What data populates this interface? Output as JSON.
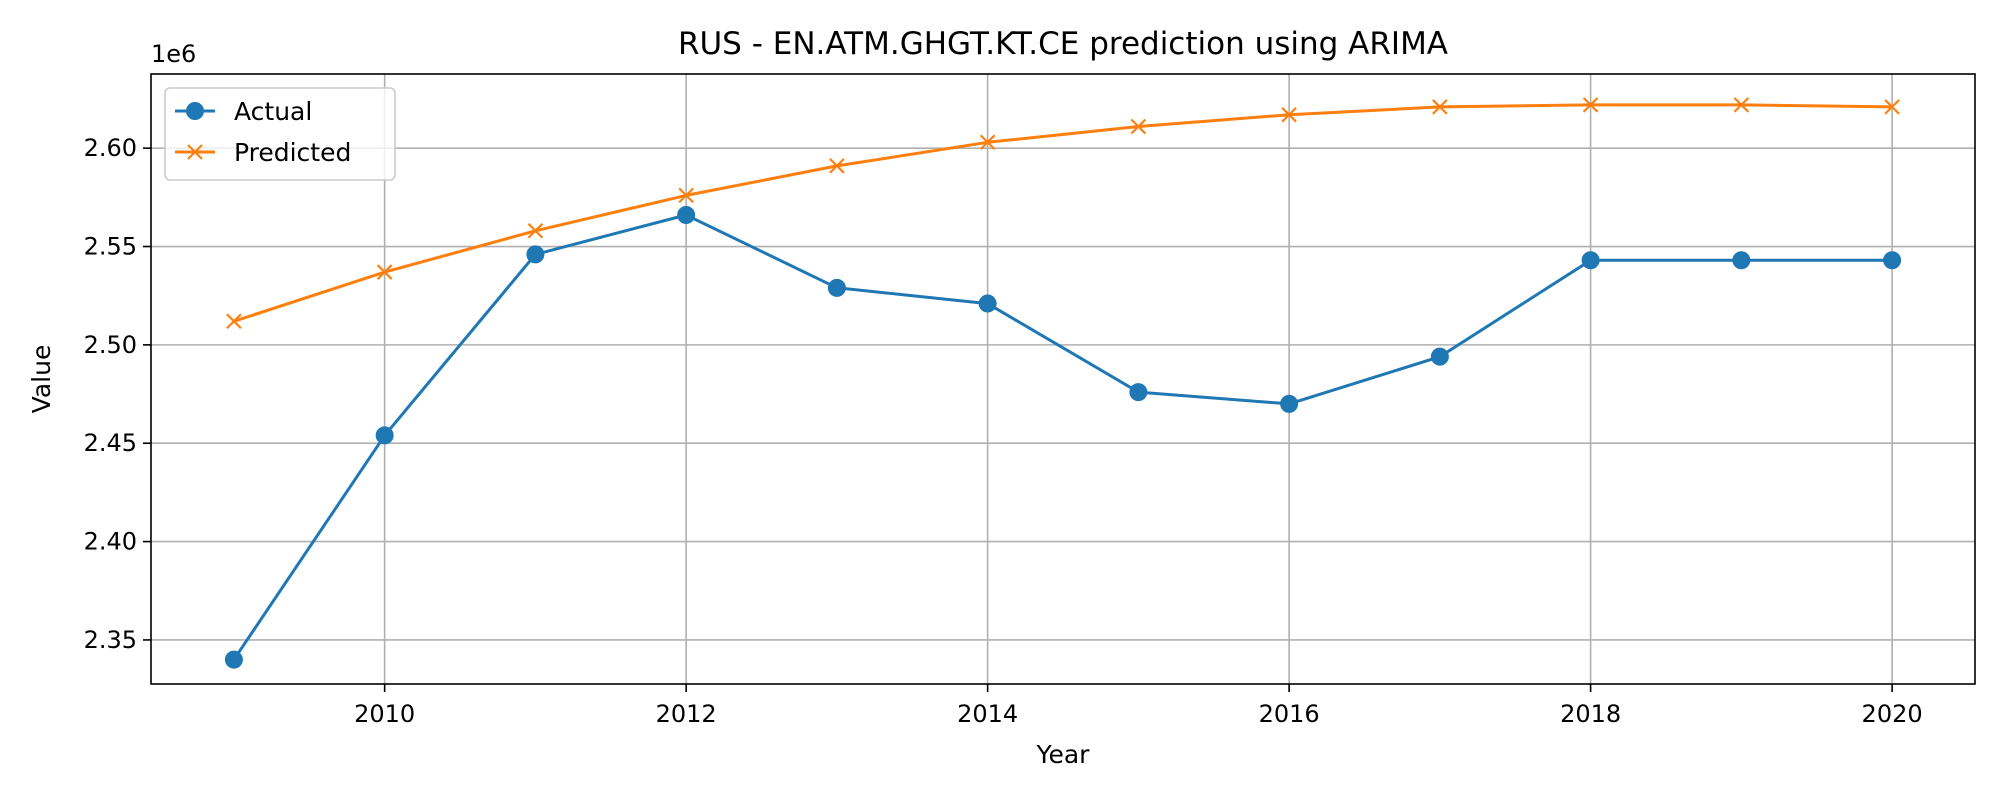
{
  "chart_data": {
    "type": "line",
    "title": "RUS - EN.ATM.GHGT.KT.CE prediction using ARIMA",
    "xlabel": "Year",
    "ylabel": "Value",
    "y_offset_label": "1e6",
    "x": [
      2009,
      2010,
      2011,
      2012,
      2013,
      2014,
      2015,
      2016,
      2017,
      2018,
      2019,
      2020
    ],
    "xlim": [
      2008.45,
      2020.55
    ],
    "ylim": [
      2.3276,
      2.6377
    ],
    "x_ticks": [
      2010,
      2012,
      2014,
      2016,
      2018,
      2020
    ],
    "y_ticks": [
      2.35,
      2.4,
      2.45,
      2.5,
      2.55,
      2.6
    ],
    "y_tick_labels": [
      "2.35",
      "2.40",
      "2.45",
      "2.50",
      "2.55",
      "2.60"
    ],
    "grid": true,
    "legend_position": "top-left",
    "series": [
      {
        "name": "Actual",
        "color": "#1f77b4",
        "marker": "circle",
        "values": [
          2.34,
          2.454,
          2.546,
          2.566,
          2.529,
          2.521,
          2.476,
          2.47,
          2.494,
          2.543,
          2.543,
          2.543
        ]
      },
      {
        "name": "Predicted",
        "color": "#ff7f0e",
        "marker": "x",
        "values": [
          2.512,
          2.537,
          2.558,
          2.576,
          2.591,
          2.603,
          2.611,
          2.617,
          2.621,
          2.622,
          2.622,
          2.621
        ]
      }
    ]
  }
}
